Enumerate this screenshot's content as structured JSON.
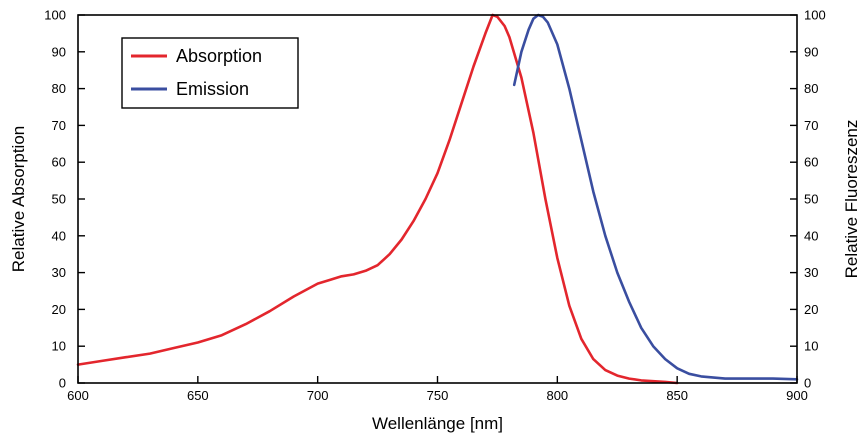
{
  "chart_data": {
    "type": "line",
    "xlabel": "Wellenlänge [nm]",
    "ylabel_left": "Relative Absorption",
    "ylabel_right": "Relative Fluoreszenz",
    "xlim": [
      600,
      900
    ],
    "ylim": [
      0,
      100
    ],
    "x_ticks": [
      "600",
      "650",
      "700",
      "750",
      "800",
      "850",
      "900"
    ],
    "y_ticks": [
      "0",
      "10",
      "20",
      "30",
      "40",
      "50",
      "60",
      "70",
      "80",
      "90",
      "100"
    ],
    "y_ticks_right": [
      "0",
      "10",
      "20",
      "30",
      "40",
      "50",
      "60",
      "70",
      "80",
      "90",
      "100"
    ],
    "legend_position": "top-left",
    "series": [
      {
        "name": "Absorption",
        "color": "#e3262d",
        "x": [
          600,
          610,
          620,
          630,
          640,
          650,
          660,
          670,
          680,
          690,
          700,
          705,
          710,
          715,
          720,
          725,
          730,
          735,
          740,
          745,
          750,
          755,
          760,
          765,
          770,
          773,
          775,
          778,
          780,
          785,
          790,
          795,
          800,
          805,
          810,
          815,
          820,
          825,
          830,
          835,
          840,
          845,
          850
        ],
        "y": [
          5,
          6,
          7,
          8,
          9.5,
          11,
          13,
          16,
          19.5,
          23.5,
          27,
          28,
          29,
          29.5,
          30.5,
          32,
          35,
          39,
          44,
          50,
          57,
          66,
          76,
          86,
          95,
          100,
          99.5,
          97,
          94,
          83,
          68,
          50,
          34,
          21,
          12,
          6.5,
          3.5,
          2,
          1.2,
          0.7,
          0.5,
          0.3,
          0
        ]
      },
      {
        "name": "Emission",
        "color": "#3a4ea0",
        "x": [
          782,
          785,
          788,
          790,
          792,
          794,
          796,
          800,
          805,
          810,
          815,
          820,
          825,
          830,
          835,
          840,
          845,
          850,
          855,
          860,
          870,
          880,
          890,
          900
        ],
        "y": [
          81,
          90,
          96,
          99,
          100,
          99.5,
          98,
          92,
          80,
          66,
          52,
          40,
          30,
          22,
          15,
          10,
          6.5,
          4,
          2.5,
          1.8,
          1.2,
          1.2,
          1.2,
          1
        ]
      }
    ]
  }
}
